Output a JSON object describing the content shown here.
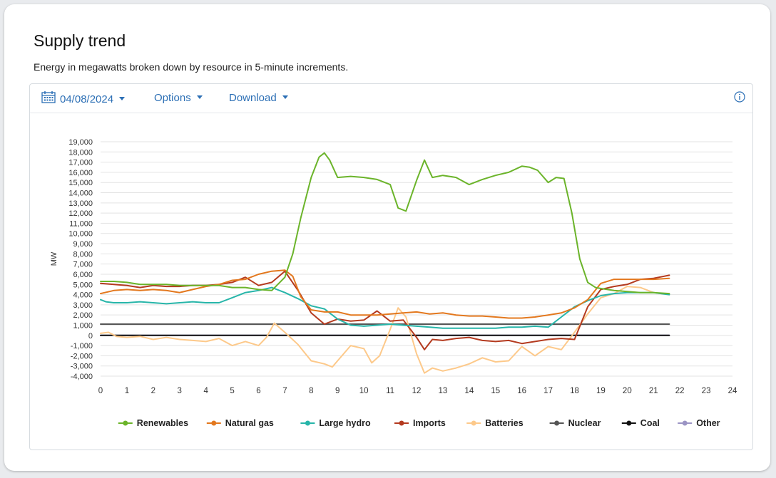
{
  "page": {
    "title": "Supply trend",
    "subtitle": "Energy in megawatts broken down by resource in 5-minute increments."
  },
  "toolbar": {
    "date": "04/08/2024",
    "options_label": "Options",
    "download_label": "Download",
    "icons": {
      "calendar": "calendar-icon",
      "info": "info-icon",
      "caret": "caret-down-icon"
    },
    "accent_color": "#2c6fb5"
  },
  "chart_data": {
    "type": "line",
    "title": "",
    "xlabel": "",
    "ylabel": "MW",
    "xlim": [
      0,
      24
    ],
    "ylim": [
      -4000,
      19000
    ],
    "xticks": [
      0,
      1,
      2,
      3,
      4,
      5,
      6,
      7,
      8,
      9,
      10,
      11,
      12,
      13,
      14,
      15,
      16,
      17,
      18,
      19,
      20,
      21,
      22,
      23,
      24
    ],
    "yticks": [
      -4000,
      -3000,
      -2000,
      -1000,
      0,
      1000,
      2000,
      3000,
      4000,
      5000,
      6000,
      7000,
      8000,
      9000,
      10000,
      11000,
      12000,
      13000,
      14000,
      15000,
      16000,
      17000,
      18000,
      19000
    ],
    "ytick_labels": [
      "-4,000",
      "-3,000",
      "-2,000",
      "-1,000",
      "0",
      "1,000",
      "2,000",
      "3,000",
      "4,000",
      "5,000",
      "6,000",
      "7,000",
      "8,000",
      "9,000",
      "10,000",
      "11,000",
      "12,000",
      "13,000",
      "14,000",
      "15,000",
      "16,000",
      "17,000",
      "18,000",
      "19,000"
    ],
    "grid": true,
    "legend_position": "bottom",
    "series": [
      {
        "name": "Renewables",
        "color": "#6bb42a",
        "x": [
          0,
          0.5,
          1,
          1.5,
          2,
          2.5,
          3,
          3.5,
          4,
          4.5,
          5,
          5.5,
          6,
          6.5,
          7,
          7.3,
          7.6,
          8,
          8.3,
          8.5,
          8.7,
          9,
          9.5,
          10,
          10.5,
          11,
          11.3,
          11.6,
          12,
          12.3,
          12.6,
          13,
          13.5,
          14,
          14.5,
          15,
          15.5,
          16,
          16.3,
          16.6,
          17,
          17.3,
          17.6,
          17.9,
          18.2,
          18.5,
          18.8,
          19,
          19.5,
          20,
          20.5,
          21,
          21.6
        ],
        "y": [
          5300,
          5300,
          5200,
          5000,
          5000,
          5000,
          4900,
          4900,
          4900,
          4900,
          4700,
          4700,
          4500,
          4400,
          5700,
          8000,
          11500,
          15500,
          17500,
          17900,
          17200,
          15500,
          15600,
          15500,
          15300,
          14800,
          12500,
          12200,
          15200,
          17200,
          15500,
          15700,
          15500,
          14800,
          15300,
          15700,
          16000,
          16600,
          16500,
          16200,
          15000,
          15500,
          15400,
          12000,
          7500,
          5200,
          4700,
          4600,
          4400,
          4300,
          4200,
          4200,
          4100
        ]
      },
      {
        "name": "Natural gas",
        "color": "#e3781e",
        "x": [
          0,
          0.5,
          1,
          1.5,
          2,
          2.5,
          3,
          3.5,
          4,
          4.5,
          5,
          5.5,
          6,
          6.5,
          7,
          7.3,
          7.6,
          8,
          8.5,
          9,
          9.5,
          10,
          10.5,
          11,
          11.5,
          12,
          12.5,
          13,
          13.5,
          14,
          14.5,
          15,
          15.5,
          16,
          16.5,
          17,
          17.5,
          18,
          18.5,
          19,
          19.5,
          20,
          20.5,
          21,
          21.6
        ],
        "y": [
          4100,
          4400,
          4500,
          4400,
          4500,
          4400,
          4200,
          4500,
          4800,
          5000,
          5400,
          5500,
          6000,
          6300,
          6400,
          5800,
          3800,
          2500,
          2300,
          2300,
          2000,
          2000,
          2000,
          2100,
          2200,
          2300,
          2100,
          2200,
          2000,
          1900,
          1900,
          1800,
          1700,
          1700,
          1800,
          2000,
          2200,
          2700,
          3500,
          5100,
          5500,
          5500,
          5500,
          5500,
          5600
        ]
      },
      {
        "name": "Large hydro",
        "color": "#27b5a9",
        "x": [
          0,
          0.2,
          0.5,
          1,
          1.5,
          2,
          2.5,
          3,
          3.5,
          4,
          4.5,
          5,
          5.5,
          6,
          6.5,
          7,
          7.5,
          8,
          8.5,
          9,
          9.5,
          10,
          10.5,
          11,
          11.5,
          12,
          12.5,
          13,
          13.5,
          14,
          14.5,
          15,
          15.5,
          16,
          16.5,
          17,
          17.5,
          18,
          18.5,
          19,
          19.5,
          20,
          20.5,
          21,
          21.6
        ],
        "y": [
          3500,
          3300,
          3200,
          3200,
          3300,
          3200,
          3100,
          3200,
          3300,
          3200,
          3200,
          3700,
          4200,
          4400,
          4700,
          4200,
          3600,
          2900,
          2600,
          1600,
          1000,
          900,
          1000,
          1100,
          1000,
          900,
          800,
          700,
          700,
          700,
          700,
          700,
          800,
          800,
          900,
          800,
          1800,
          2800,
          3400,
          3900,
          4100,
          4200,
          4200,
          4200,
          4000
        ]
      },
      {
        "name": "Imports",
        "color": "#b43a1f",
        "x": [
          0,
          0.5,
          1,
          1.5,
          2,
          2.5,
          3,
          3.5,
          4,
          4.5,
          5,
          5.5,
          6,
          6.5,
          7,
          7.5,
          8,
          8.5,
          9,
          9.5,
          10,
          10.5,
          11,
          11.5,
          12,
          12.3,
          12.6,
          13,
          13.5,
          14,
          14.5,
          15,
          15.5,
          16,
          16.5,
          17,
          17.5,
          18,
          18.5,
          19,
          19.5,
          20,
          20.5,
          21,
          21.6
        ],
        "y": [
          5100,
          5000,
          4900,
          4700,
          4900,
          4800,
          4800,
          4900,
          4900,
          5000,
          5200,
          5700,
          4900,
          5200,
          6300,
          4400,
          2200,
          1100,
          1600,
          1400,
          1500,
          2400,
          1400,
          1500,
          -200,
          -1400,
          -400,
          -500,
          -300,
          -200,
          -500,
          -600,
          -500,
          -800,
          -600,
          -400,
          -300,
          -400,
          2800,
          4500,
          4800,
          5000,
          5500,
          5600,
          5900
        ]
      },
      {
        "name": "Batteries",
        "color": "#fdc98a",
        "x": [
          0,
          0.3,
          0.6,
          1,
          1.5,
          2,
          2.5,
          3,
          3.5,
          4,
          4.5,
          5,
          5.5,
          6,
          6.3,
          6.6,
          7,
          7.5,
          8,
          8.5,
          8.8,
          9,
          9.5,
          10,
          10.3,
          10.6,
          11,
          11.3,
          11.6,
          12,
          12.3,
          12.6,
          13,
          13.5,
          14,
          14.5,
          15,
          15.5,
          16,
          16.5,
          17,
          17.5,
          18,
          18.5,
          19,
          19.5,
          20,
          20.5,
          21,
          21.6
        ],
        "y": [
          200,
          300,
          -100,
          -200,
          -100,
          -400,
          -200,
          -400,
          -500,
          -600,
          -300,
          -1000,
          -600,
          -1000,
          -200,
          1200,
          300,
          -900,
          -2500,
          -2800,
          -3100,
          -2500,
          -1000,
          -1300,
          -2700,
          -2000,
          600,
          2700,
          1800,
          -1800,
          -3700,
          -3200,
          -3500,
          -3200,
          -2800,
          -2200,
          -2600,
          -2500,
          -1100,
          -2000,
          -1100,
          -1400,
          300,
          2100,
          3700,
          4100,
          4800,
          4700,
          4200,
          4000
        ]
      },
      {
        "name": "Nuclear",
        "color": "#555555",
        "x": [
          0,
          21.6
        ],
        "y": [
          1100,
          1100
        ]
      },
      {
        "name": "Coal",
        "color": "#111111",
        "x": [
          0,
          21.6
        ],
        "y": [
          0,
          0
        ]
      },
      {
        "name": "Other",
        "color": "#9b94c4",
        "x": [
          0,
          21.6
        ],
        "y": [
          0,
          0
        ]
      }
    ]
  }
}
